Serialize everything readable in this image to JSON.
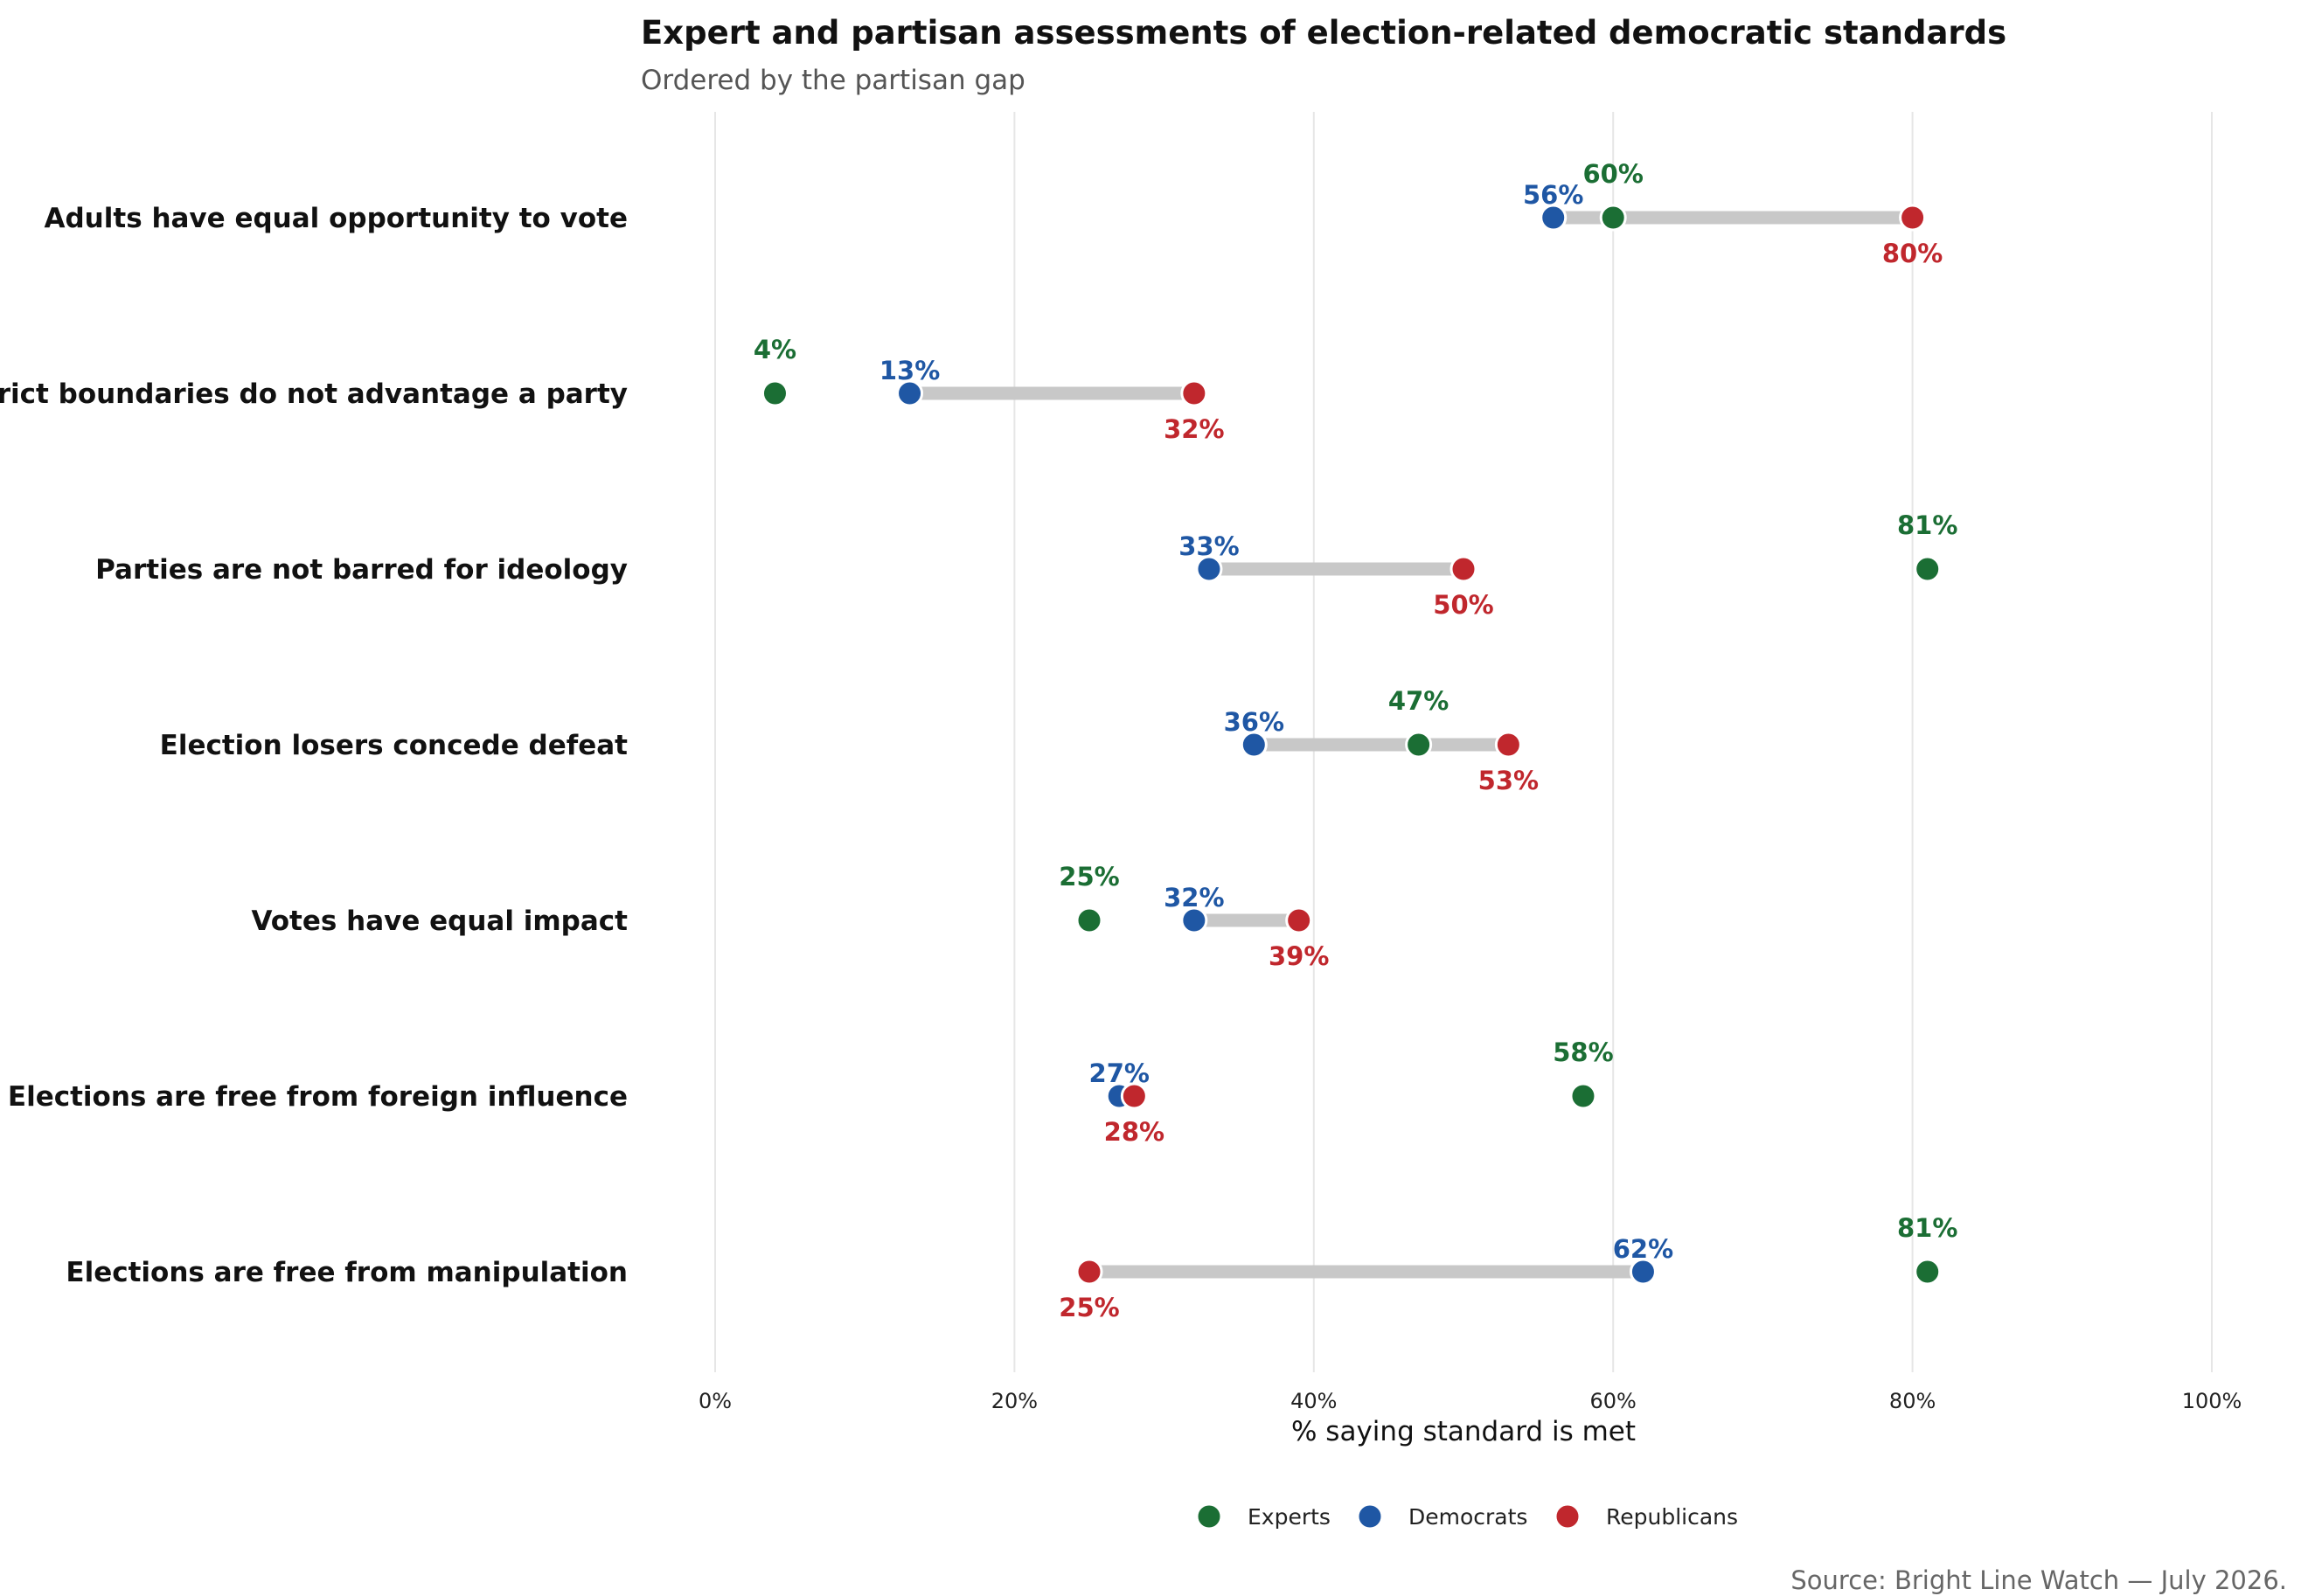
{
  "chart_data": {
    "type": "dot-plot",
    "title": "Expert and partisan assessments of election-related democratic standards",
    "subtitle": "Ordered by the partisan gap",
    "xlabel": "% saying standard is met",
    "ylabel": "",
    "xlim": [
      0,
      100
    ],
    "x_ticks": [
      "0%",
      "20%",
      "40%",
      "60%",
      "80%",
      "100%"
    ],
    "x_tick_values": [
      0,
      20,
      40,
      60,
      80,
      100
    ],
    "grid": "vertical",
    "legend_position": "bottom",
    "caption": "Source: Bright Line Watch — July 2026.",
    "categories": [
      "Adults have equal opportunity to vote",
      "District boundaries do not advantage a party",
      "Parties are not barred for ideology",
      "Election losers concede defeat",
      "Votes have equal impact",
      "Elections are free from foreign influence",
      "Elections are free from manipulation"
    ],
    "series": [
      {
        "name": "Experts",
        "color": "#1b6e34",
        "values": [
          60,
          4,
          81,
          47,
          25,
          58,
          81
        ],
        "labels": [
          "60%",
          "4%",
          "81%",
          "47%",
          "25%",
          "58%",
          "81%"
        ]
      },
      {
        "name": "Democrats",
        "color": "#1f57a4",
        "values": [
          56,
          13,
          33,
          36,
          32,
          27,
          62
        ],
        "labels": [
          "56%",
          "13%",
          "33%",
          "36%",
          "32%",
          "27%",
          "62%"
        ]
      },
      {
        "name": "Republicans",
        "color": "#c0272d",
        "values": [
          80,
          32,
          50,
          53,
          39,
          28,
          25
        ],
        "labels": [
          "80%",
          "32%",
          "50%",
          "53%",
          "39%",
          "28%",
          "25%"
        ]
      }
    ],
    "connector": {
      "between": [
        "Democrats",
        "Republicans"
      ],
      "color": "#c8c8c8"
    }
  }
}
